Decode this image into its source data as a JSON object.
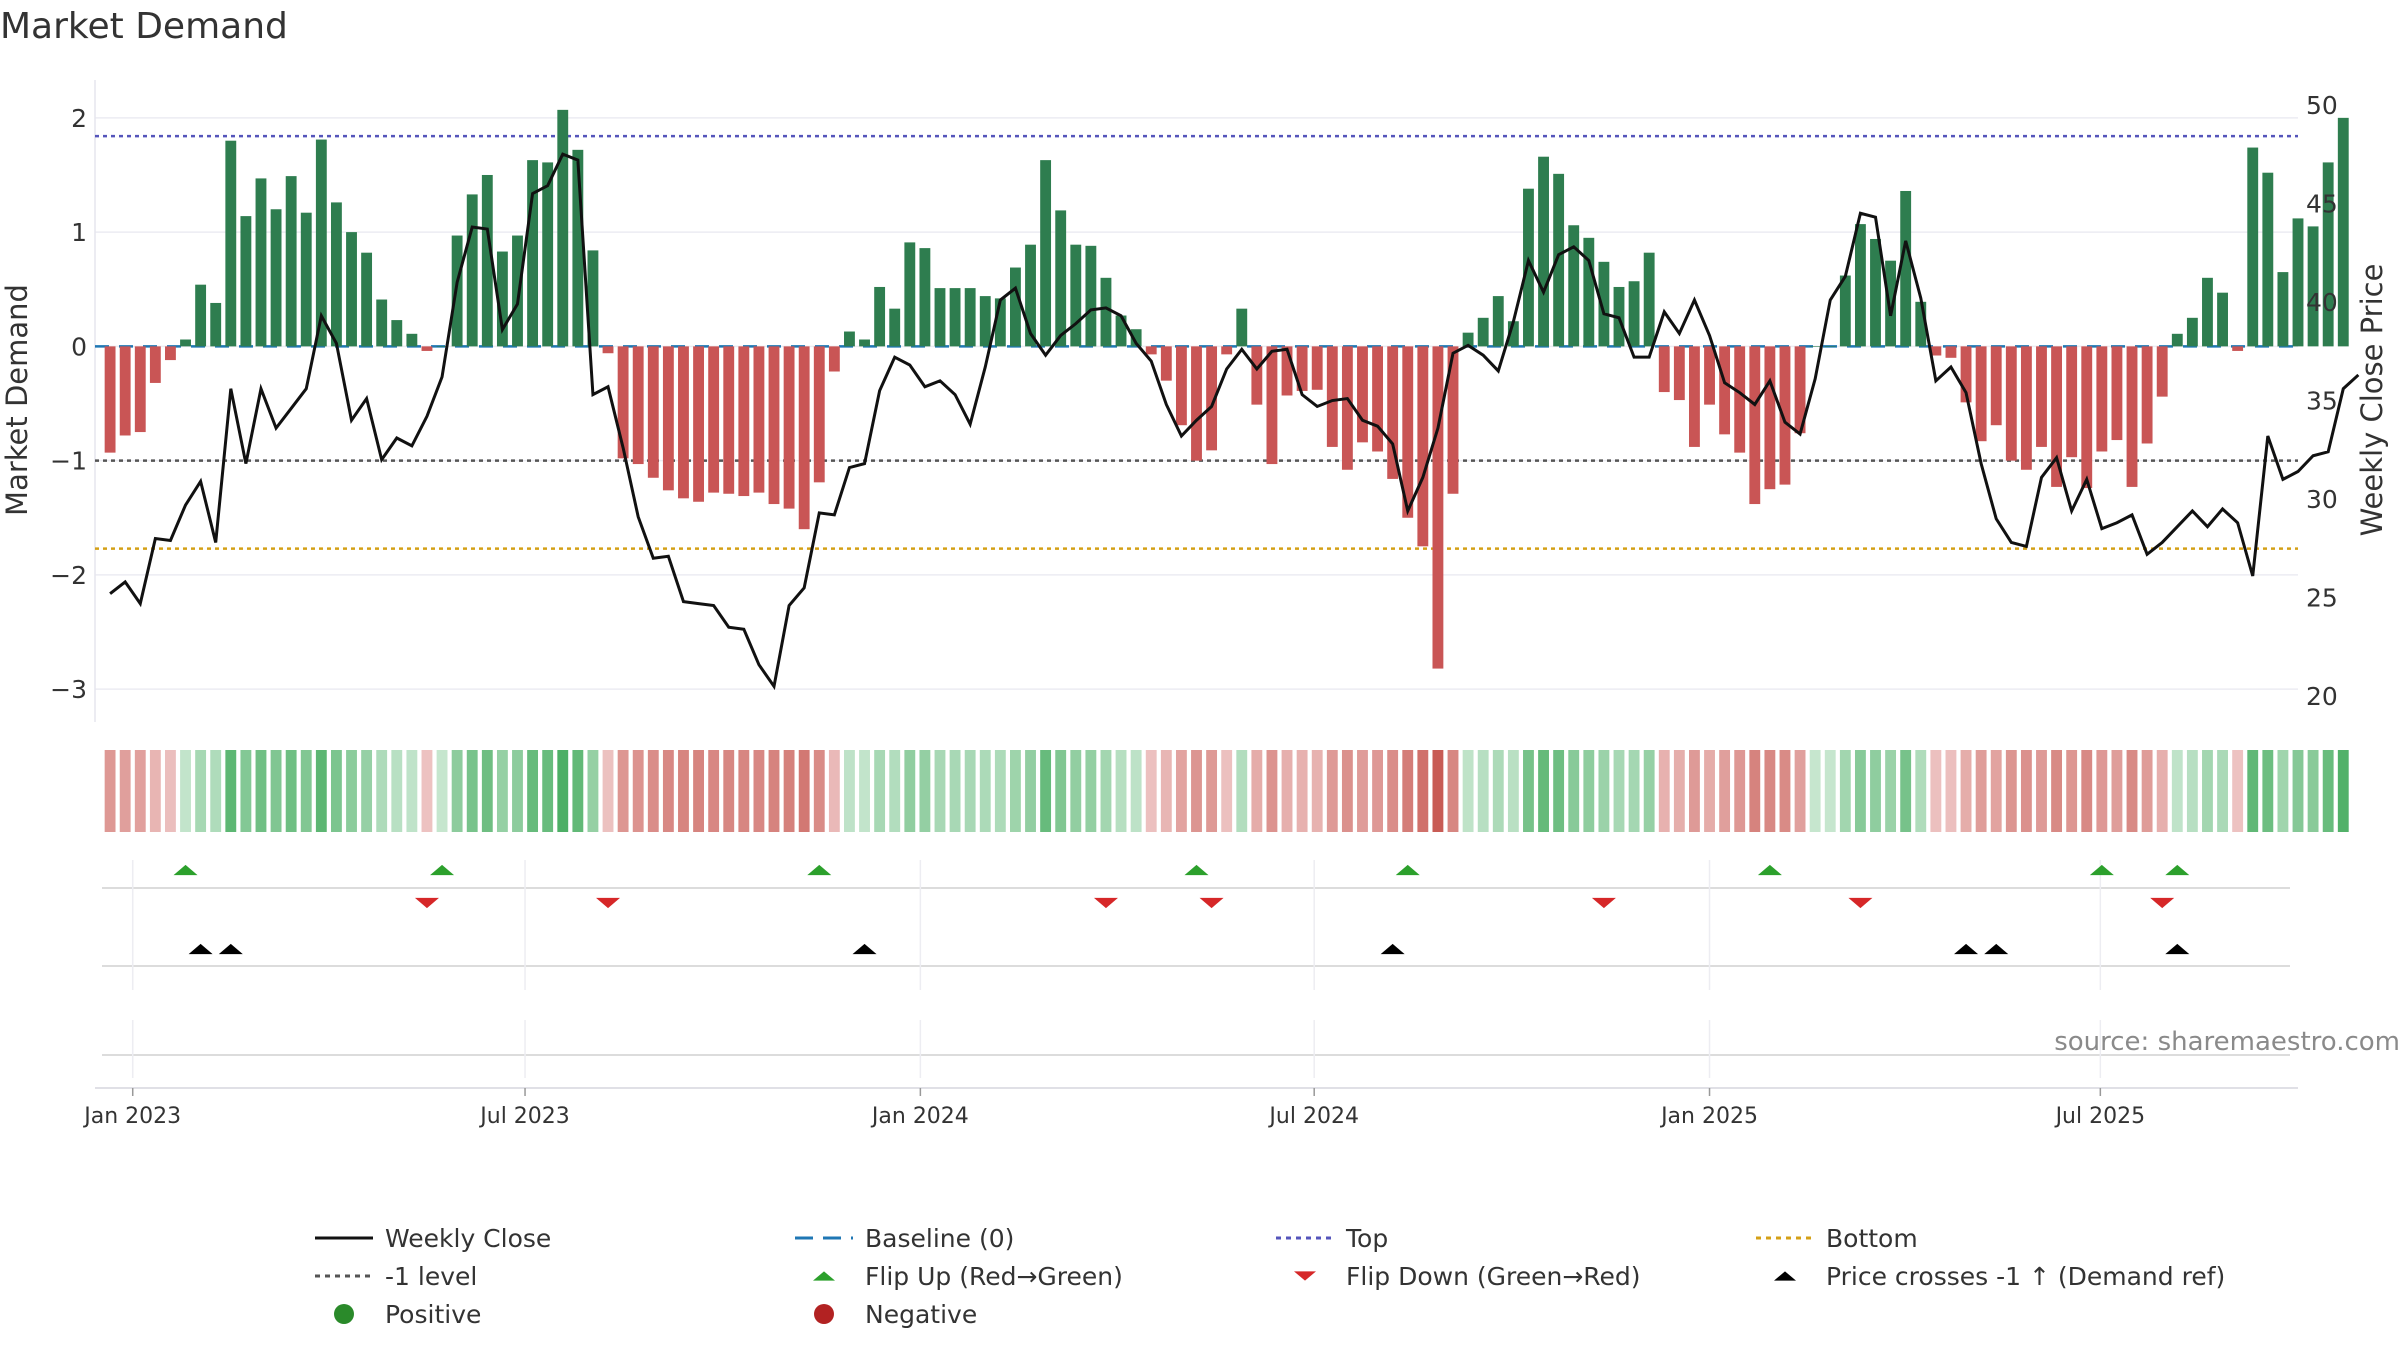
{
  "chart_data": {
    "type": "bar",
    "title": "Market Demand",
    "ylabel_left": "Market Demand",
    "ylabel_right": "Weekly Close Price",
    "source": "source: sharemaestro.com",
    "ylim_left": [
      -3.2,
      2.2
    ],
    "ylim_right": [
      19.2,
      50.5
    ],
    "yticks_left": [
      2,
      1,
      0,
      -1,
      -2,
      -3
    ],
    "yticks_left_labels": [
      "2",
      "1",
      "0",
      "−1",
      "−2",
      "−3"
    ],
    "yticks_right": [
      50,
      45,
      40,
      35,
      30,
      25,
      20
    ],
    "x_range_weeks": [
      -1,
      145
    ],
    "x_ticks": [
      {
        "label": "Jan 2023",
        "week": 1.5
      },
      {
        "label": "Jul 2023",
        "week": 27.5
      },
      {
        "label": "Jan 2024",
        "week": 53.7
      },
      {
        "label": "Jul 2024",
        "week": 79.8
      },
      {
        "label": "Jan 2025",
        "week": 106.0
      },
      {
        "label": "Jul 2025",
        "week": 131.9
      }
    ],
    "levels": {
      "top": 1.84,
      "minus_one": -1.0,
      "bottom": -1.77,
      "baseline": 0
    },
    "colors": {
      "positive": "#2e7d4f",
      "negative": "#c95555",
      "close": "#111111",
      "baseline": "#1f77b4",
      "top": "#5555bb",
      "minus_one": "#555555",
      "bottom": "#d4a017",
      "flip_up": "#2ca02c",
      "flip_down": "#d62728",
      "cross": "#000000"
    },
    "demand": [
      -0.93,
      -0.78,
      -0.75,
      -0.32,
      -0.12,
      0.06,
      0.54,
      0.38,
      1.8,
      1.14,
      1.47,
      1.2,
      1.49,
      1.17,
      1.81,
      1.26,
      1.0,
      0.82,
      0.41,
      0.23,
      0.11,
      -0.04,
      0.0,
      0.97,
      1.33,
      1.5,
      0.83,
      0.97,
      1.63,
      1.61,
      2.07,
      1.72,
      0.84,
      -0.06,
      -0.98,
      -1.03,
      -1.15,
      -1.26,
      -1.33,
      -1.36,
      -1.28,
      -1.29,
      -1.31,
      -1.28,
      -1.38,
      -1.42,
      -1.6,
      -1.19,
      -0.22,
      0.13,
      0.06,
      0.52,
      0.33,
      0.91,
      0.86,
      0.51,
      0.51,
      0.51,
      0.44,
      0.42,
      0.69,
      0.89,
      1.63,
      1.19,
      0.89,
      0.88,
      0.6,
      0.27,
      0.15,
      -0.07,
      -0.3,
      -0.69,
      -1.0,
      -0.91,
      -0.07,
      0.33,
      -0.51,
      -1.03,
      -0.43,
      -0.39,
      -0.38,
      -0.88,
      -1.08,
      -0.84,
      -0.92,
      -1.16,
      -1.5,
      -1.75,
      -2.82,
      -1.29,
      0.12,
      0.25,
      0.44,
      0.22,
      1.38,
      1.66,
      1.51,
      1.06,
      0.95,
      0.74,
      0.52,
      0.57,
      0.82,
      -0.4,
      -0.47,
      -0.88,
      -0.51,
      -0.77,
      -0.93,
      -1.38,
      -1.25,
      -1.21,
      -0.76,
      0.0,
      0.0,
      0.62,
      1.07,
      0.94,
      0.75,
      1.36,
      0.39,
      -0.08,
      -0.1,
      -0.49,
      -0.83,
      -0.69,
      -1.0,
      -1.08,
      -0.88,
      -1.23,
      -0.97,
      -1.24,
      -0.92,
      -0.82,
      -1.23,
      -0.85,
      -0.44,
      0.11,
      0.25,
      0.6,
      0.47,
      -0.04,
      1.74,
      1.52,
      0.65,
      1.12,
      1.05,
      1.61,
      2.0
    ],
    "close": [
      25.2,
      25.8,
      24.7,
      28.0,
      27.9,
      29.7,
      30.9,
      27.8,
      35.6,
      31.8,
      35.6,
      33.6,
      34.6,
      35.6,
      39.3,
      37.9,
      34.0,
      35.1,
      32.0,
      33.1,
      32.7,
      34.2,
      36.2,
      41.0,
      43.8,
      43.7,
      38.6,
      39.9,
      45.5,
      45.9,
      47.5,
      47.2,
      35.3,
      35.7,
      32.6,
      29.1,
      27.0,
      27.1,
      24.8,
      24.7,
      24.6,
      23.5,
      23.4,
      21.6,
      20.5,
      24.6,
      25.5,
      29.3,
      29.2,
      31.6,
      31.8,
      35.5,
      37.2,
      36.8,
      35.7,
      36.0,
      35.3,
      33.8,
      36.7,
      40.1,
      40.7,
      38.4,
      37.3,
      38.3,
      38.9,
      39.6,
      39.7,
      39.3,
      37.9,
      37.0,
      34.8,
      33.2,
      34.0,
      34.7,
      36.6,
      37.6,
      36.6,
      37.5,
      37.6,
      35.3,
      34.7,
      35.0,
      35.1,
      34.0,
      33.7,
      32.8,
      29.4,
      31.1,
      33.6,
      37.4,
      37.8,
      37.3,
      36.5,
      39.0,
      42.1,
      40.5,
      42.4,
      42.8,
      42.1,
      39.4,
      39.2,
      37.2,
      37.2,
      39.5,
      38.4,
      40.1,
      38.3,
      35.9,
      35.4,
      34.8,
      36.0,
      33.9,
      33.3,
      36.1,
      40.1,
      41.3,
      44.5,
      44.3,
      39.3,
      43.1,
      40.2,
      36.0,
      36.7,
      35.4,
      31.8,
      29.0,
      27.8,
      27.6,
      31.1,
      32.1,
      29.4,
      31.0,
      28.5,
      28.8,
      29.2,
      27.2,
      27.8,
      28.6,
      29.4,
      28.6,
      29.5,
      28.8,
      26.1,
      33.2,
      31.0,
      31.4,
      32.2,
      32.4,
      35.6,
      36.3
    ],
    "flip_up_weeks": [
      5,
      22,
      47,
      72,
      86,
      110,
      132,
      137
    ],
    "flip_down_weeks": [
      21,
      33,
      66,
      73,
      99,
      116,
      136
    ],
    "cross_weeks": [
      6,
      8,
      50,
      85,
      123,
      125,
      137
    ]
  },
  "legend": [
    {
      "label": "Weekly Close",
      "kind": "line-solid",
      "color": "#111111"
    },
    {
      "label": "Baseline (0)",
      "kind": "line-dashed",
      "color": "#1f77b4"
    },
    {
      "label": "Top",
      "kind": "line-dotted",
      "color": "#5555bb"
    },
    {
      "label": "Bottom",
      "kind": "line-dotted",
      "color": "#d4a017"
    },
    {
      "label": "-1 level",
      "kind": "line-dotted",
      "color": "#555555"
    },
    {
      "label": "Flip Up (Red→Green)",
      "kind": "tri-up",
      "color": "#2ca02c"
    },
    {
      "label": "Flip Down (Green→Red)",
      "kind": "tri-down",
      "color": "#d62728"
    },
    {
      "label": "Price crosses -1 ↑ (Demand ref)",
      "kind": "tri-up",
      "color": "#000000"
    },
    {
      "label": "Positive",
      "kind": "dot",
      "color": "#2a8a2a"
    },
    {
      "label": "Negative",
      "kind": "dot",
      "color": "#b22222"
    }
  ]
}
